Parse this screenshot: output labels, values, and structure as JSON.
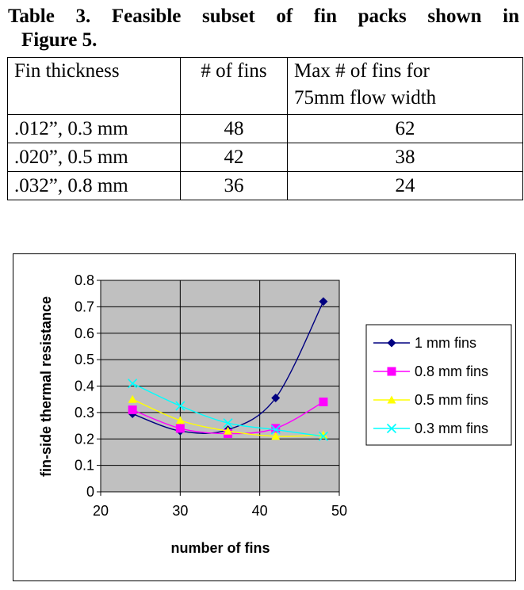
{
  "caption": {
    "line1": "Table 3. Feasible subset of fin packs shown in",
    "line2": "Figure 5."
  },
  "table": {
    "headers": [
      "Fin thickness",
      "# of fins",
      "Max # of fins for",
      "75mm flow width"
    ],
    "rows": [
      [
        ".012”, 0.3 mm",
        "48",
        "62"
      ],
      [
        ".020”, 0.5 mm",
        "42",
        "38"
      ],
      [
        ".032”, 0.8 mm",
        "36",
        "24"
      ]
    ]
  },
  "chart_data": {
    "type": "line",
    "xlabel": "number of fins",
    "ylabel": "fin-side thermal resistance",
    "xlim": [
      20,
      50
    ],
    "ylim": [
      0,
      0.8
    ],
    "xticks": [
      "20",
      "30",
      "40",
      "50"
    ],
    "yticks": [
      "0",
      "0.1",
      "0.2",
      "0.3",
      "0.4",
      "0.5",
      "0.6",
      "0.7",
      "0.8"
    ],
    "grid": true,
    "plot_background": "#c0c0c0",
    "legend_position": "right",
    "series": [
      {
        "name": "1 mm fins",
        "color": "#000080",
        "marker": "diamond",
        "x": [
          24,
          30,
          36,
          42,
          48
        ],
        "y": [
          0.295,
          0.23,
          0.235,
          0.355,
          0.72
        ]
      },
      {
        "name": "0.8 mm fins",
        "color": "#ff00ff",
        "marker": "square",
        "x": [
          24,
          30,
          36,
          42,
          48
        ],
        "y": [
          0.31,
          0.24,
          0.22,
          0.24,
          0.34
        ]
      },
      {
        "name": "0.5 mm fins",
        "color": "#ffff00",
        "marker": "triangle",
        "x": [
          24,
          30,
          36,
          42,
          48
        ],
        "y": [
          0.35,
          0.27,
          0.23,
          0.21,
          0.215
        ]
      },
      {
        "name": "0.3 mm fins",
        "color": "#00ffff",
        "marker": "x",
        "x": [
          24,
          30,
          36,
          42,
          48
        ],
        "y": [
          0.41,
          0.325,
          0.26,
          0.235,
          0.21
        ]
      }
    ]
  }
}
